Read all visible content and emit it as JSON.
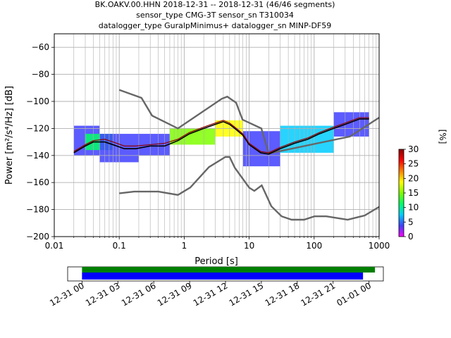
{
  "title_lines": [
    "BK.OAKV.00.HHN   2018-12-31 -- 2018-12-31  (46/46 segments)",
    "sensor_type CMG-3T sensor_sn T310034",
    "datalogger_type GuralpMinimus+ datalogger_sn MINP-DF59"
  ],
  "colors": {
    "noise_model": "#666666",
    "mean": "#000000",
    "mode": "#8b0000",
    "coverage_data": "#008000",
    "coverage_segments": "#0000ff",
    "colormap": [
      "#ff00ff",
      "#4040ff",
      "#00ccff",
      "#00ff66",
      "#7fff00",
      "#ffff00",
      "#ff8000",
      "#ff0000",
      "#8b0000"
    ]
  },
  "chart_data": [
    {
      "type": "heatmap",
      "subtype": "probabilistic power spectral density",
      "xlabel": "Period [s]",
      "ylabel": "Power [m²/s⁴/Hz] [dB]",
      "xscale": "log",
      "xlim": [
        0.01,
        1000
      ],
      "ylim": [
        -200,
        -50
      ],
      "xticks": [
        0.01,
        0.1,
        1,
        10,
        100,
        1000
      ],
      "xtick_labels": [
        "0.01",
        "0.1",
        "1",
        "10",
        "100",
        "1000"
      ],
      "yticks": [
        -200,
        -180,
        -160,
        -140,
        -120,
        -100,
        -80,
        -60
      ],
      "ytick_labels": [
        "−200",
        "−180",
        "−160",
        "−140",
        "−120",
        "−100",
        "−80",
        "−60"
      ],
      "grid": true,
      "colorbar": {
        "label": "[%]",
        "range": [
          0,
          30
        ],
        "ticks": [
          0,
          5,
          10,
          15,
          20,
          25,
          30
        ],
        "tick_labels": [
          "0",
          "5",
          "10",
          "15",
          "20",
          "25",
          "30"
        ]
      },
      "noise_models": [
        {
          "name": "high",
          "x": [
            0.1,
            0.22,
            0.32,
            0.8,
            3.8,
            4.6,
            6.3,
            7.9,
            15.4,
            20,
            354.8,
            1000
          ],
          "y": [
            -91.5,
            -97.4,
            -110.5,
            -120,
            -98,
            -96.5,
            -101,
            -113.5,
            -120,
            -138.5,
            -126,
            -112
          ]
        },
        {
          "name": "low",
          "x": [
            0.1,
            0.17,
            0.4,
            0.8,
            1.24,
            2.4,
            4.3,
            5,
            6,
            10,
            12,
            15.6,
            21.9,
            31.6,
            45,
            70,
            101,
            154,
            328,
            600,
            1000
          ],
          "y": [
            -168,
            -166.7,
            -166.7,
            -169.2,
            -163.7,
            -148.6,
            -141.1,
            -141.1,
            -149,
            -163.8,
            -166.2,
            -162.1,
            -177.5,
            -185,
            -187.5,
            -187.5,
            -185,
            -185,
            -187.5,
            -184.4,
            -178
          ]
        }
      ],
      "mean": {
        "x": [
          0.02,
          0.03,
          0.04,
          0.06,
          0.08,
          0.12,
          0.18,
          0.3,
          0.5,
          0.8,
          1.2,
          2,
          3,
          4,
          5,
          6,
          8,
          10,
          15,
          20,
          30,
          50,
          80,
          120,
          200,
          300,
          500,
          700
        ],
        "y": [
          -138,
          -133,
          -130,
          -130,
          -132,
          -135,
          -135,
          -133,
          -133,
          -129,
          -124,
          -120,
          -117,
          -115,
          -117,
          -120,
          -125,
          -132,
          -138,
          -139,
          -135,
          -131,
          -128,
          -124,
          -120,
          -117,
          -113,
          -113
        ]
      },
      "mode": {
        "x": [
          0.02,
          0.03,
          0.04,
          0.06,
          0.08,
          0.12,
          0.18,
          0.3,
          0.5,
          0.8,
          1.2,
          2,
          3,
          4,
          5,
          6,
          8,
          10,
          15,
          20,
          30,
          50,
          80,
          120,
          200,
          300,
          500,
          700
        ],
        "y": [
          -137,
          -132,
          -129,
          -128,
          -130,
          -133,
          -133,
          -132,
          -131,
          -128,
          -123,
          -119,
          -116,
          -114,
          -116,
          -119,
          -124,
          -131,
          -137,
          -138,
          -134,
          -130,
          -127,
          -123,
          -119,
          -116,
          -112,
          -112
        ]
      },
      "density": [
        {
          "x": [
            0.02,
            0.05
          ],
          "y": [
            -140,
            -118
          ],
          "pct": 3
        },
        {
          "x": [
            0.03,
            0.08
          ],
          "y": [
            -136,
            -124
          ],
          "pct": 10
        },
        {
          "x": [
            0.05,
            0.2
          ],
          "y": [
            -145,
            -124
          ],
          "pct": 2
        },
        {
          "x": [
            0.2,
            0.6
          ],
          "y": [
            -140,
            -124
          ],
          "pct": 5
        },
        {
          "x": [
            0.6,
            3
          ],
          "y": [
            -132,
            -120
          ],
          "pct": 14
        },
        {
          "x": [
            3,
            8
          ],
          "y": [
            -126,
            -114
          ],
          "pct": 18
        },
        {
          "x": [
            8,
            30
          ],
          "y": [
            -148,
            -122
          ],
          "pct": 5
        },
        {
          "x": [
            30,
            200
          ],
          "y": [
            -138,
            -118
          ],
          "pct": 8
        },
        {
          "x": [
            200,
            700
          ],
          "y": [
            -126,
            -108
          ],
          "pct": 4
        }
      ]
    },
    {
      "type": "timeline",
      "xtick_labels": [
        "12-31 00",
        "12-31 03",
        "12-31 06",
        "12-31 09",
        "12-31 12",
        "12-31 15",
        "12-31 18",
        "12-31 21",
        "01-01 00"
      ],
      "xlim_hours": [
        -1.2,
        25.2
      ],
      "xticks_hours": [
        0,
        3,
        6,
        9,
        12,
        15,
        18,
        21,
        24
      ],
      "coverage": [
        {
          "name": "data",
          "start_hours": 0,
          "end_hours": 24.5
        },
        {
          "name": "segments",
          "start_hours": 0,
          "end_hours": 23.5
        }
      ]
    }
  ]
}
